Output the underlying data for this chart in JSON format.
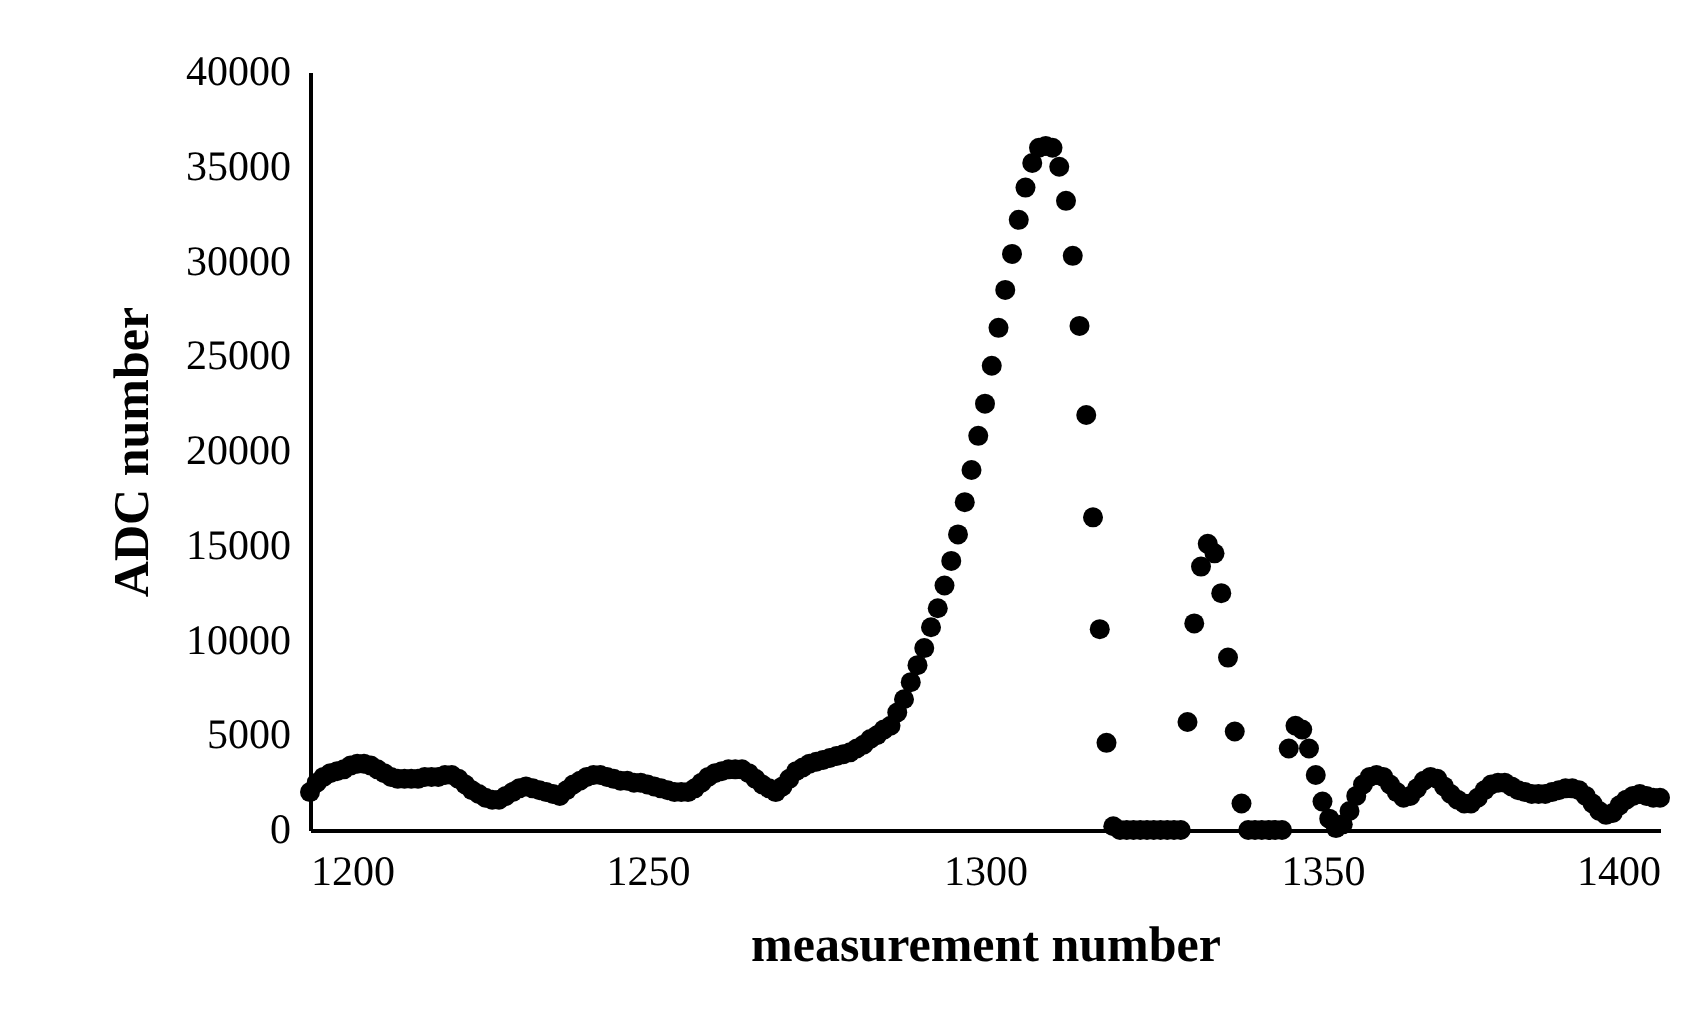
{
  "chart_data": {
    "type": "scatter",
    "xlabel": "measurement number",
    "ylabel": "ADC number",
    "x": [
      1200,
      1201,
      1202,
      1203,
      1204,
      1205,
      1206,
      1207,
      1208,
      1209,
      1210,
      1211,
      1212,
      1213,
      1214,
      1215,
      1216,
      1217,
      1218,
      1219,
      1220,
      1221,
      1222,
      1223,
      1224,
      1225,
      1226,
      1227,
      1228,
      1229,
      1230,
      1231,
      1232,
      1233,
      1234,
      1235,
      1236,
      1237,
      1238,
      1239,
      1240,
      1241,
      1242,
      1243,
      1244,
      1245,
      1246,
      1247,
      1248,
      1249,
      1250,
      1251,
      1252,
      1253,
      1254,
      1255,
      1256,
      1257,
      1258,
      1259,
      1260,
      1261,
      1262,
      1263,
      1264,
      1265,
      1266,
      1267,
      1268,
      1269,
      1270,
      1271,
      1272,
      1273,
      1274,
      1275,
      1276,
      1277,
      1278,
      1279,
      1280,
      1281,
      1282,
      1283,
      1284,
      1285,
      1286,
      1287,
      1288,
      1289,
      1290,
      1291,
      1292,
      1293,
      1294,
      1295,
      1296,
      1297,
      1298,
      1299,
      1300,
      1301,
      1302,
      1303,
      1304,
      1305,
      1306,
      1307,
      1308,
      1309,
      1310,
      1311,
      1312,
      1313,
      1314,
      1315,
      1316,
      1317,
      1318,
      1319,
      1320,
      1321,
      1322,
      1323,
      1324,
      1325,
      1326,
      1327,
      1328,
      1329,
      1330,
      1331,
      1332,
      1333,
      1334,
      1335,
      1336,
      1337,
      1338,
      1339,
      1340,
      1341,
      1342,
      1343,
      1344,
      1345,
      1346,
      1347,
      1348,
      1349,
      1350,
      1351,
      1352,
      1353,
      1354,
      1355,
      1356,
      1357,
      1358,
      1359,
      1360,
      1361,
      1362,
      1363,
      1364,
      1365,
      1366,
      1367,
      1368,
      1369,
      1370,
      1371,
      1372,
      1373,
      1374,
      1375,
      1376,
      1377,
      1378,
      1379,
      1380,
      1381,
      1382,
      1383,
      1384,
      1385,
      1386,
      1387,
      1388,
      1389,
      1390,
      1391,
      1392,
      1393,
      1394,
      1395,
      1396,
      1397,
      1398,
      1399,
      1400
    ],
    "series": [
      {
        "color": "#000000",
        "values": [
          2000,
          2500,
          2800,
          3000,
          3100,
          3200,
          3400,
          3500,
          3500,
          3400,
          3200,
          3000,
          2800,
          2700,
          2700,
          2700,
          2700,
          2800,
          2800,
          2800,
          2900,
          2900,
          2700,
          2400,
          2100,
          1900,
          1700,
          1600,
          1600,
          1800,
          2000,
          2200,
          2300,
          2200,
          2100,
          2000,
          1900,
          1800,
          2100,
          2400,
          2600,
          2800,
          2900,
          2900,
          2800,
          2700,
          2600,
          2600,
          2500,
          2500,
          2400,
          2300,
          2200,
          2100,
          2000,
          2000,
          2000,
          2200,
          2500,
          2800,
          3000,
          3100,
          3200,
          3200,
          3200,
          3000,
          2700,
          2400,
          2200,
          2000,
          2300,
          2700,
          3100,
          3300,
          3500,
          3600,
          3700,
          3800,
          3900,
          4000,
          4100,
          4300,
          4500,
          4800,
          5000,
          5300,
          5500,
          6200,
          6900,
          7800,
          8700,
          9600,
          10700,
          11700,
          12900,
          14200,
          15600,
          17300,
          19000,
          20800,
          22500,
          24500,
          26500,
          28500,
          30400,
          32200,
          33900,
          35200,
          36000,
          36100,
          36000,
          35000,
          33200,
          30300,
          26600,
          21900,
          16500,
          10600,
          4600,
          200,
          0,
          0,
          0,
          0,
          0,
          0,
          0,
          0,
          0,
          0,
          5700,
          10900,
          13900,
          15100,
          14600,
          12500,
          9100,
          5200,
          1400,
          0,
          0,
          0,
          0,
          0,
          0,
          4300,
          5500,
          5300,
          4300,
          2900,
          1500,
          600,
          100,
          300,
          1000,
          1800,
          2400,
          2800,
          2900,
          2800,
          2400,
          2000,
          1700,
          1800,
          2200,
          2600,
          2800,
          2700,
          2300,
          1900,
          1600,
          1400,
          1400,
          1700,
          2100,
          2400,
          2500,
          2500,
          2300,
          2100,
          2000,
          1900,
          1900,
          1900,
          2000,
          2100,
          2200,
          2200,
          2100,
          1800,
          1400,
          1000,
          800,
          900,
          1300,
          1600,
          1800,
          1900,
          1800,
          1700,
          1700
        ]
      }
    ],
    "xlim": [
      1200,
      1400
    ],
    "xticks": [
      1200,
      1250,
      1300,
      1350,
      1400
    ],
    "ylim": [
      0,
      40000
    ],
    "yticks": [
      0,
      5000,
      10000,
      15000,
      20000,
      25000,
      30000,
      35000,
      40000
    ],
    "grid": false,
    "marker": "circle",
    "legend": false
  }
}
